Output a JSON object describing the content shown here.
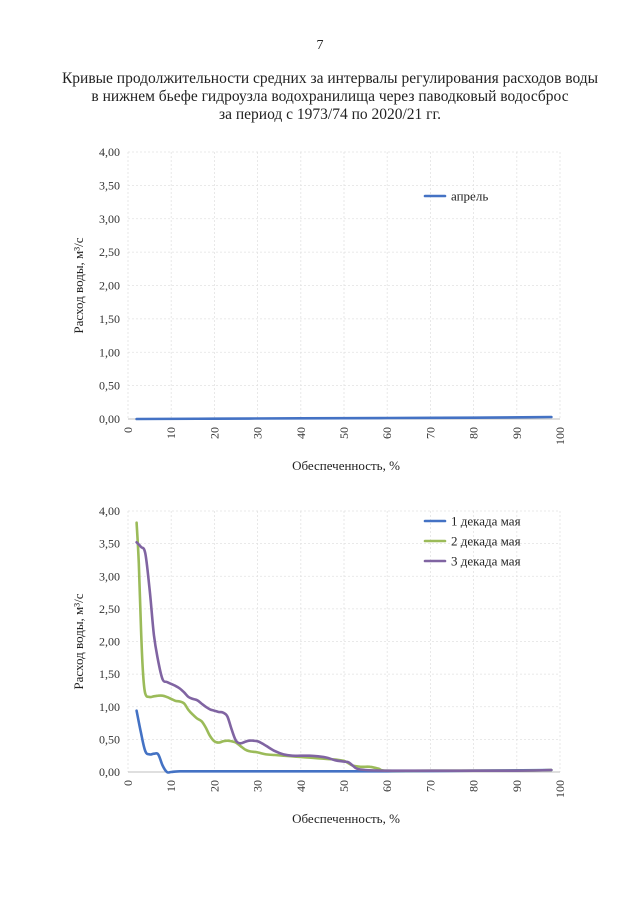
{
  "page": {
    "number": "7",
    "title_lines": [
      "Кривые продолжительности средних за интервалы регулирования расходов воды",
      "в нижнем бьефе гидроузла водохранилища через паводковый водосброс",
      "за период с 1973/74 по 2020/21 гг."
    ]
  },
  "chart_data": [
    {
      "type": "line",
      "xlabel": "Обеспеченность, %",
      "ylabel": "Расход воды, м³/с",
      "xlim": [
        0,
        100
      ],
      "ylim": [
        0,
        4
      ],
      "x_ticks": [
        "0",
        "10",
        "20",
        "30",
        "40",
        "50",
        "60",
        "70",
        "80",
        "90",
        "100"
      ],
      "y_ticks": [
        "0,00",
        "0,50",
        "1,00",
        "1,50",
        "2,00",
        "2,50",
        "3,00",
        "3,50",
        "4,00"
      ],
      "grid": true,
      "legend_position": "top-right",
      "series": [
        {
          "name": "апрель",
          "color": "#4472c4",
          "x": [
            2,
            20,
            40,
            60,
            80,
            98
          ],
          "y": [
            0.0,
            0.005,
            0.01,
            0.015,
            0.02,
            0.03
          ]
        }
      ]
    },
    {
      "type": "line",
      "xlabel": "Обеспеченность, %",
      "ylabel": "Расход воды, м³/с",
      "xlim": [
        0,
        100
      ],
      "ylim": [
        0,
        4
      ],
      "x_ticks": [
        "0",
        "10",
        "20",
        "30",
        "40",
        "50",
        "60",
        "70",
        "80",
        "90",
        "100"
      ],
      "y_ticks": [
        "0,00",
        "0,50",
        "1,00",
        "1,50",
        "2,00",
        "2,50",
        "3,00",
        "3,50",
        "4,00"
      ],
      "grid": true,
      "legend_position": "top-right",
      "series": [
        {
          "name": "1 декада мая",
          "color": "#4472c4",
          "x": [
            2,
            3,
            4,
            5,
            6,
            7,
            8,
            9,
            10,
            12,
            20,
            30,
            40,
            50,
            60,
            80,
            98
          ],
          "y": [
            0.94,
            0.6,
            0.32,
            0.27,
            0.28,
            0.27,
            0.1,
            0.0,
            0.0,
            0.01,
            0.01,
            0.01,
            0.01,
            0.01,
            0.01,
            0.02,
            0.03
          ]
        },
        {
          "name": "2 декада мая",
          "color": "#9bbb59",
          "x": [
            2,
            2.5,
            3,
            3.5,
            4,
            5,
            6,
            7,
            8,
            9,
            10,
            11,
            12,
            13,
            14,
            15,
            16,
            17,
            18,
            19,
            20,
            21,
            22,
            23,
            24,
            25,
            26,
            27,
            28,
            30,
            32,
            34,
            36,
            38,
            40,
            42,
            44,
            46,
            48,
            50,
            52,
            54,
            56,
            58,
            60,
            70,
            80,
            90,
            98
          ],
          "y": [
            3.82,
            3.2,
            2.2,
            1.5,
            1.2,
            1.15,
            1.16,
            1.17,
            1.17,
            1.15,
            1.12,
            1.09,
            1.08,
            1.05,
            0.95,
            0.88,
            0.82,
            0.78,
            0.68,
            0.55,
            0.47,
            0.45,
            0.47,
            0.48,
            0.47,
            0.45,
            0.4,
            0.35,
            0.32,
            0.3,
            0.27,
            0.26,
            0.25,
            0.24,
            0.23,
            0.22,
            0.21,
            0.2,
            0.19,
            0.17,
            0.1,
            0.08,
            0.08,
            0.05,
            0.02,
            0.02,
            0.02,
            0.02,
            0.03
          ]
        },
        {
          "name": "3 декада мая",
          "color": "#8064a2",
          "x": [
            2,
            3,
            4,
            5,
            6,
            7,
            8,
            9,
            10,
            11,
            12,
            13,
            14,
            15,
            16,
            17,
            18,
            19,
            20,
            21,
            22,
            23,
            24,
            25,
            26,
            27,
            28,
            29,
            30,
            31,
            32,
            34,
            36,
            38,
            40,
            42,
            44,
            46,
            48,
            50,
            51,
            52,
            53,
            55,
            60,
            70,
            80,
            90,
            98
          ],
          "y": [
            3.52,
            3.45,
            3.35,
            2.8,
            2.1,
            1.7,
            1.42,
            1.38,
            1.35,
            1.32,
            1.28,
            1.22,
            1.15,
            1.12,
            1.1,
            1.05,
            1.0,
            0.96,
            0.94,
            0.92,
            0.91,
            0.85,
            0.65,
            0.48,
            0.44,
            0.46,
            0.48,
            0.48,
            0.47,
            0.44,
            0.4,
            0.32,
            0.27,
            0.25,
            0.25,
            0.25,
            0.24,
            0.22,
            0.18,
            0.16,
            0.15,
            0.1,
            0.05,
            0.03,
            0.02,
            0.02,
            0.02,
            0.02,
            0.03
          ]
        }
      ]
    }
  ]
}
